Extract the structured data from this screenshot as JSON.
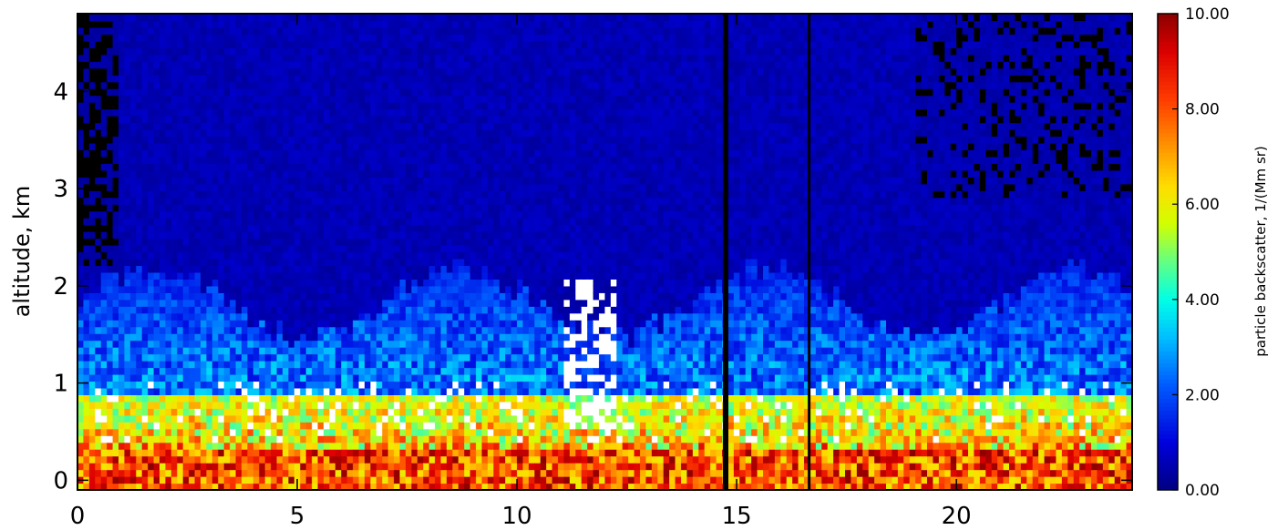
{
  "chart_data": {
    "type": "heatmap",
    "title": "",
    "xlabel": "",
    "ylabel": "altitude, km",
    "xlim": [
      0,
      24
    ],
    "ylim": [
      -0.1,
      4.8
    ],
    "x_ticks": [
      0,
      5,
      10,
      15,
      20
    ],
    "y_ticks": [
      0,
      1,
      2,
      3,
      4
    ],
    "colorbar": {
      "label": "particle backscatter, 1/(Mm sr)",
      "range": [
        0,
        10
      ],
      "ticks": [
        "0.00",
        "2.00",
        "4.00",
        "6.00",
        "8.00",
        "10.00"
      ],
      "tick_values": [
        0,
        2,
        4,
        6,
        8,
        10
      ],
      "colormap": "rainbow"
    },
    "observations": {
      "boundary_layer_top_km": 0.85,
      "residual_layer_top_km": 1.9,
      "cloud_free_background_value": 0.3,
      "data_gaps_hours": [
        14.75,
        16.65
      ],
      "saturated_color": "#ffffff",
      "missing_color": "#000000"
    }
  }
}
